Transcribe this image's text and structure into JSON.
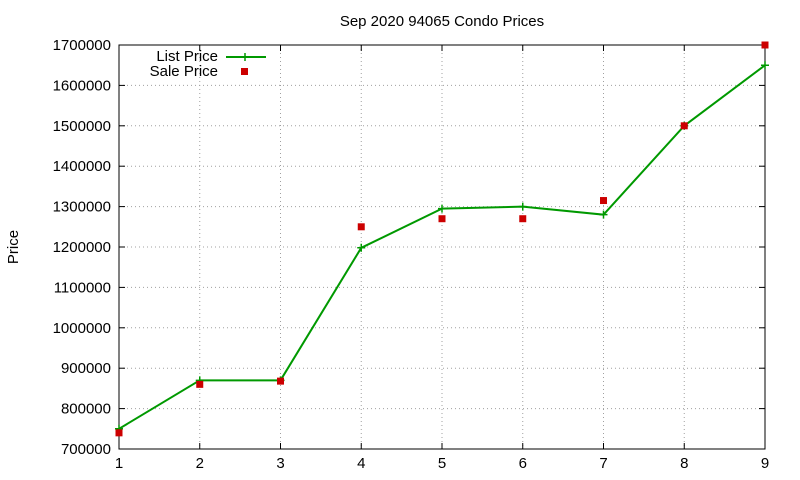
{
  "chart_data": {
    "type": "line",
    "title": "Sep 2020 94065 Condo Prices",
    "xlabel": "",
    "ylabel": "Price",
    "x": [
      1,
      2,
      3,
      4,
      5,
      6,
      7,
      8,
      9
    ],
    "xlim": [
      1,
      9
    ],
    "ylim": [
      700000,
      1700000
    ],
    "xticks": [
      "1",
      "2",
      "3",
      "4",
      "5",
      "6",
      "7",
      "8",
      "9"
    ],
    "yticks": [
      "700000",
      "800000",
      "900000",
      "1000000",
      "1100000",
      "1200000",
      "1300000",
      "1400000",
      "1500000",
      "1600000",
      "1700000"
    ],
    "grid": true,
    "legend_position": "top-left",
    "series": [
      {
        "name": "List Price",
        "style": "line-with-plus-markers",
        "color": "#009900",
        "values": [
          750000,
          870000,
          870000,
          1198000,
          1295000,
          1300000,
          1280000,
          1500000,
          1650000
        ]
      },
      {
        "name": "Sale Price",
        "style": "square-points",
        "color": "#cc0000",
        "values": [
          740000,
          860000,
          868000,
          1250000,
          1270000,
          1270000,
          1315000,
          1500000,
          1700000
        ]
      }
    ]
  }
}
